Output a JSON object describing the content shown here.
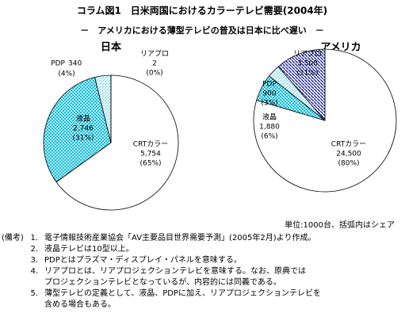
{
  "title": "コラム図1　日米両国におけるカラーテレビ需要(2004年)",
  "subtitle": "－　アメリカにおける薄型テレビの普及は日本に比べ遅い　－",
  "unit_note": "単位:1000台、括弧内はシェア",
  "notes_label": "(備考)",
  "notes": [
    {
      "number": "1.",
      "lines": [
        "電子情報技術産業協会「AV主要品目世界需要予測」(2005年2月)より作成。"
      ]
    },
    {
      "number": "2.",
      "lines": [
        "液晶テレビは10型以上。"
      ]
    },
    {
      "number": "3.",
      "lines": [
        "PDPとはプラズマ・ディスプレイ・パネルを意味する。"
      ]
    },
    {
      "number": "4.",
      "lines": [
        "リアプロとは、リアプロジェクションテレビを意味する。なお、原典では",
        "プロジェクションテレビとなっているが、内容的には同義である。"
      ]
    },
    {
      "number": "5.",
      "lines": [
        "薄型テレビの定義として、液晶、PDPに加え、リアプロジェクションテレビを",
        "含める場合もある。"
      ]
    }
  ],
  "chart_data": [
    {
      "type": "pie",
      "title": "日本",
      "categories": [
        "CRTカラー",
        "液晶",
        "PDP",
        "リアプロ"
      ],
      "values": [
        5754,
        2746,
        340,
        2
      ],
      "value_labels": [
        "5,754",
        "2,746",
        "340",
        "2"
      ],
      "shares": [
        65,
        31,
        4,
        0
      ],
      "share_labels": [
        "(65%)",
        "(31%)",
        "(4%)",
        "(0%)"
      ],
      "colors": [
        "#ffffff",
        "#00b8d8",
        "#80d8e8",
        "#2830a0"
      ]
    },
    {
      "type": "pie",
      "title": "アメリカ",
      "categories": [
        "CRTカラー",
        "液晶",
        "PDP",
        "リアプロ"
      ],
      "values": [
        24500,
        1880,
        900,
        3500
      ],
      "value_labels": [
        "24,500",
        "1,880",
        "900",
        "3,500"
      ],
      "shares": [
        80,
        6,
        3,
        11
      ],
      "share_labels": [
        "(80%)",
        "(6%)",
        "(3%)",
        "(11%)"
      ],
      "colors": [
        "#ffffff",
        "#00b8d8",
        "#80d8e8",
        "#2830a0"
      ]
    }
  ]
}
